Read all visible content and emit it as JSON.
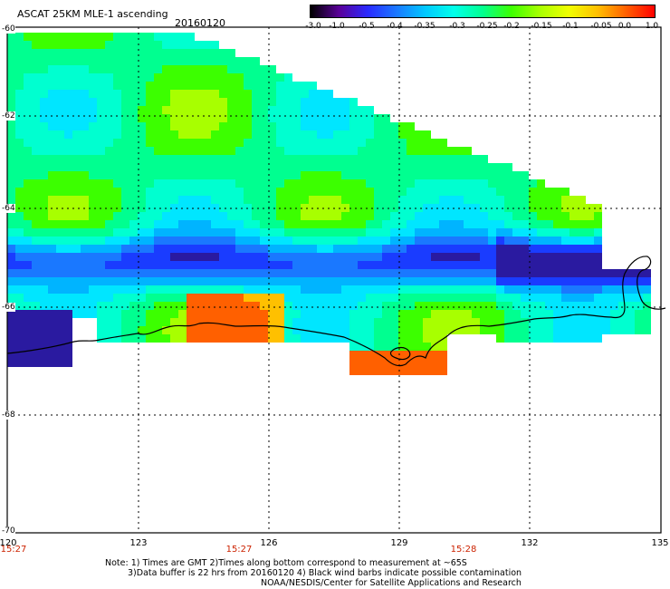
{
  "header": {
    "title": "ASCAT 25KM MLE-1 ascending",
    "date": "20160120"
  },
  "colorbar": {
    "labels": [
      "-3.0",
      "-1.0",
      "-0.5",
      "-0.4",
      "-0.35",
      "-0.3",
      "-0.25",
      "-0.2",
      "-0.15",
      "-0.1",
      "-0.05",
      "0.0",
      "1.0"
    ],
    "colors": [
      "#000000",
      "#5a0099",
      "#2a2aff",
      "#1a78ff",
      "#00c8ff",
      "#00ffea",
      "#00ff90",
      "#3cff00",
      "#a8ff00",
      "#f0ff00",
      "#ffc000",
      "#ff6000",
      "#ff0000"
    ]
  },
  "map": {
    "lat_labels": [
      "-60",
      "-62",
      "-64",
      "-66",
      "-68",
      "-70"
    ],
    "lon_labels": [
      "120",
      "123",
      "126",
      "129",
      "132",
      "135"
    ],
    "time_labels": [
      "15:27",
      "15:27",
      "15:28"
    ]
  },
  "notes": {
    "line1": "Note: 1) Times are GMT 2)Times along bottom correspond to measurement at ~65S",
    "line2": "3)Data buffer is 22 hrs from 20160120 4) Black wind barbs indicate possible contamination",
    "line3": "NOAA/NESDIS/Center for Satellite Applications and Research"
  }
}
